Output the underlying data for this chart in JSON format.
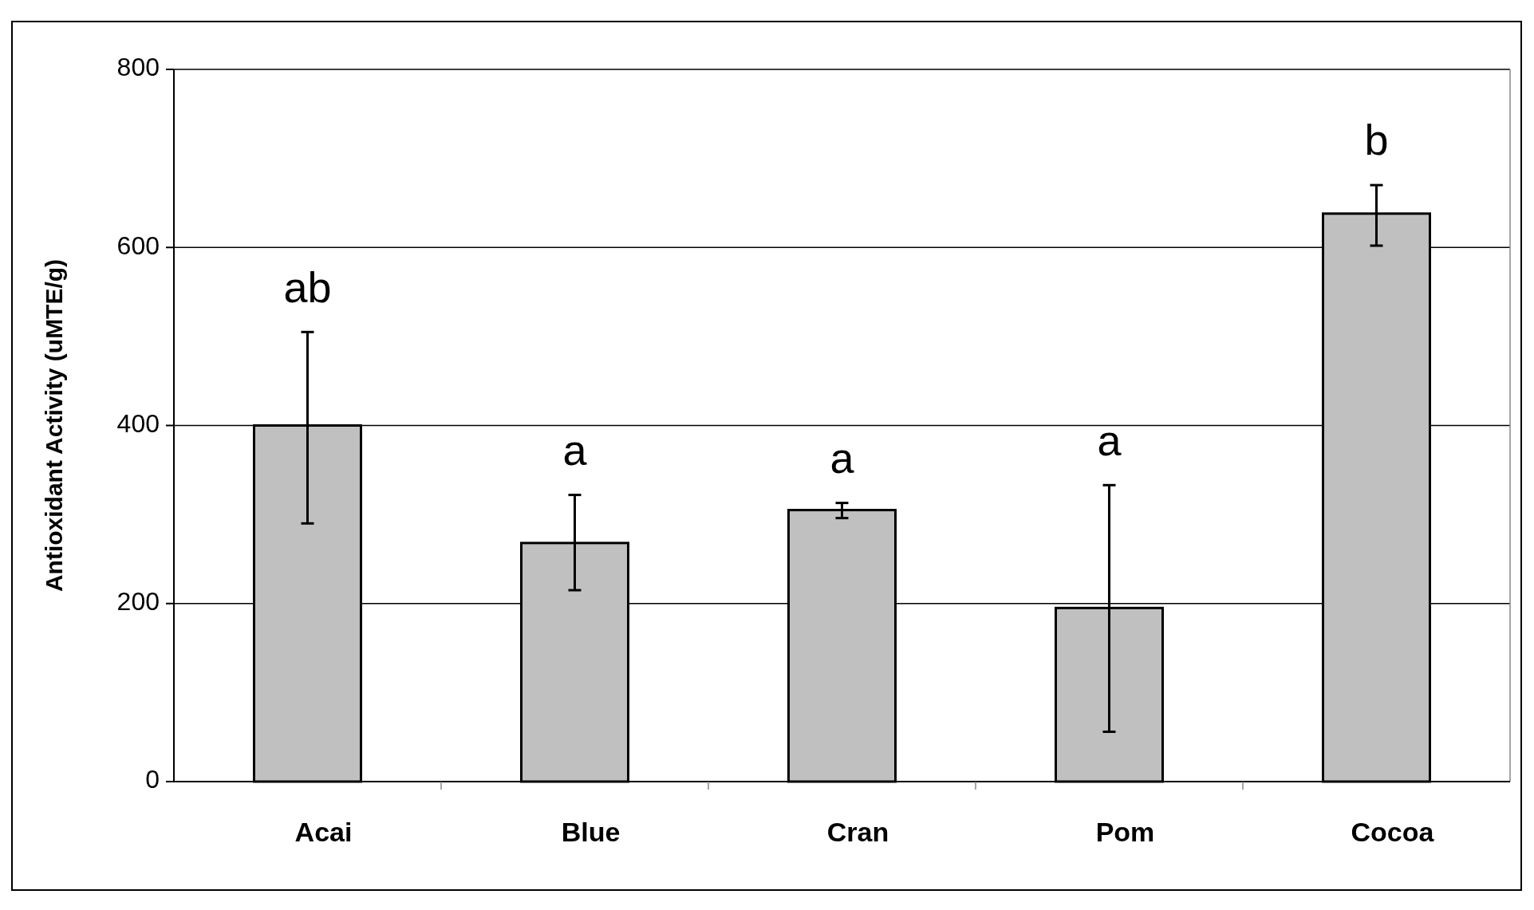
{
  "chart_data": {
    "type": "bar",
    "ylabel": "Antioxidant Activity (uMTE/g)",
    "categories": [
      "Acai",
      "Blue",
      "Cran",
      "Pom",
      "Cocoa"
    ],
    "values": [
      400,
      268,
      305,
      195,
      638
    ],
    "color": "#c0c0c0",
    "errors": [
      [
        290,
        505
      ],
      [
        215,
        322
      ],
      [
        296,
        313
      ],
      [
        56,
        333
      ],
      [
        602,
        670
      ]
    ],
    "ylim": [
      0,
      800
    ],
    "yticks": [
      0,
      200,
      400,
      600,
      800
    ],
    "grid": "y",
    "annotations": [
      "ab",
      "a",
      "a",
      "a",
      "b"
    ]
  }
}
